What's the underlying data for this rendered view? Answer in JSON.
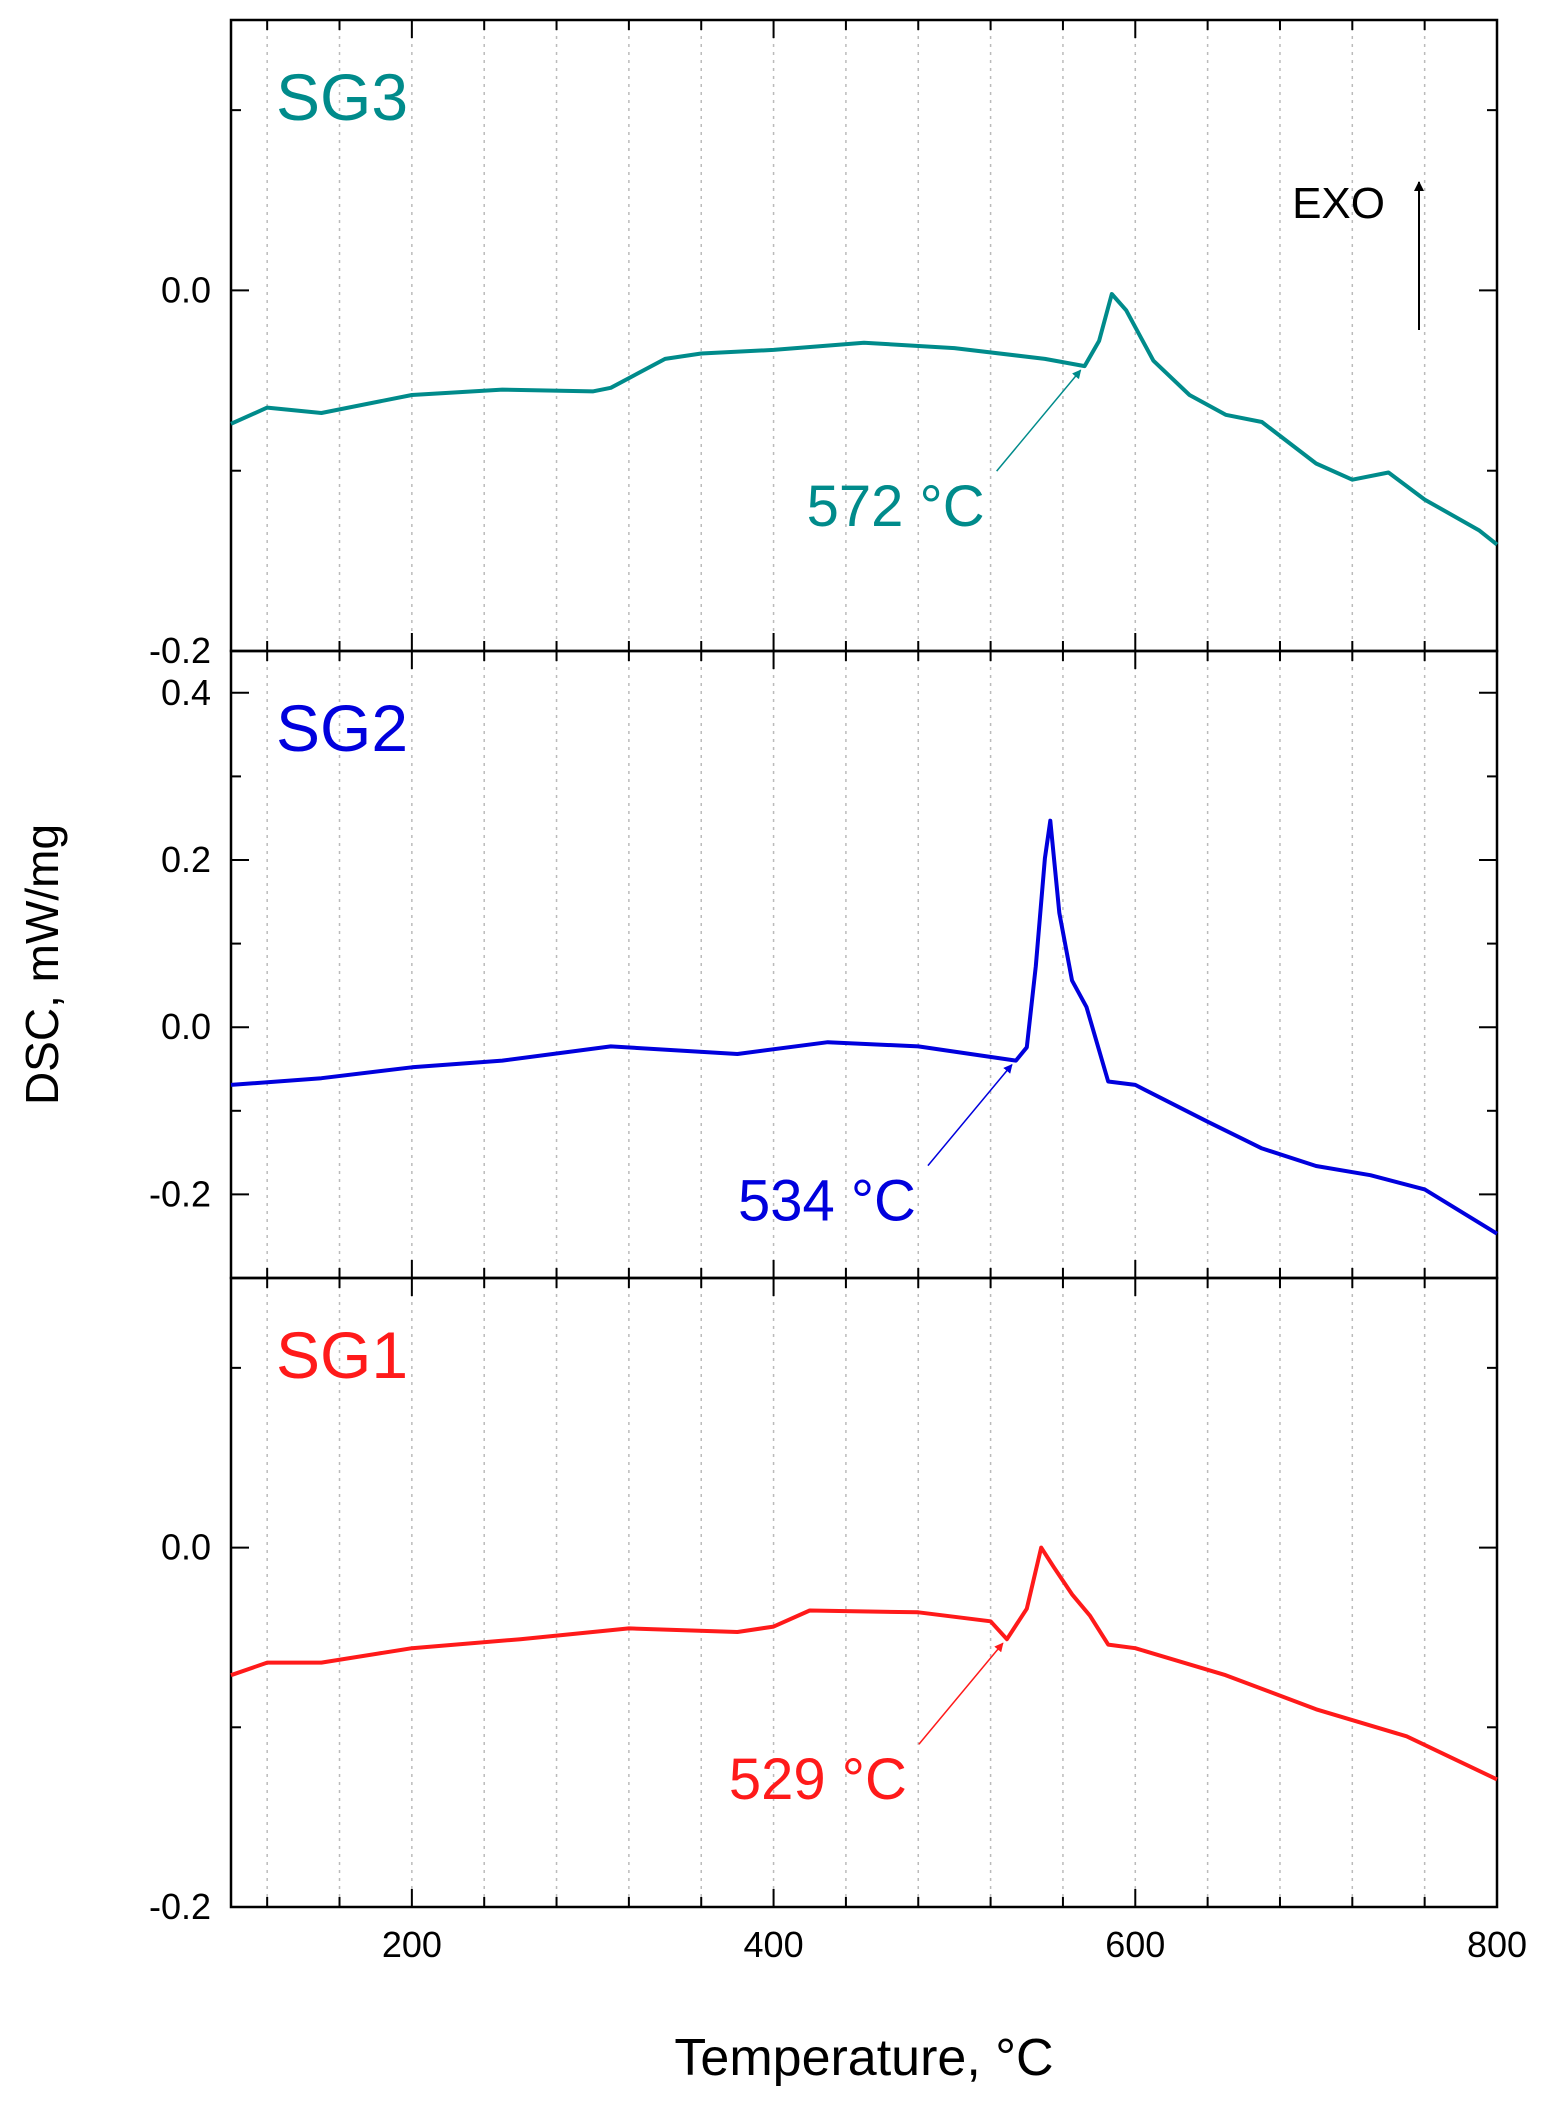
{
  "chart_data": [
    {
      "type": "line",
      "ylim": [
        -0.2,
        0.15
      ],
      "yticks": [
        {
          "value": 0,
          "label": "0.0"
        },
        {
          "value": -0.2,
          "label": "-0.2"
        }
      ],
      "yminorticks": [
        0.1,
        -0.1
      ],
      "series": [
        {
          "name": "SG3",
          "color": "#008b8b",
          "x": [
            100,
            120,
            150,
            200,
            250,
            300,
            310,
            340,
            360,
            400,
            450,
            500,
            550,
            572,
            580,
            587,
            595,
            610,
            630,
            650,
            670,
            700,
            720,
            740,
            760,
            790,
            800
          ],
          "values": [
            -0.074,
            -0.065,
            -0.068,
            -0.058,
            -0.055,
            -0.056,
            -0.054,
            -0.038,
            -0.035,
            -0.033,
            -0.029,
            -0.032,
            -0.038,
            -0.042,
            -0.028,
            -0.002,
            -0.011,
            -0.039,
            -0.058,
            -0.069,
            -0.073,
            -0.096,
            -0.105,
            -0.101,
            -0.116,
            -0.133,
            -0.141
          ]
        }
      ],
      "annotations": [
        {
          "text": "572 °C",
          "x": 572,
          "y": -0.042
        },
        {
          "text": "EXO"
        }
      ]
    },
    {
      "type": "line",
      "ylim": [
        -0.3,
        0.45
      ],
      "ylabel": "DSC, mW/mg",
      "yticks": [
        {
          "value": 0.4,
          "label": "0.4"
        },
        {
          "value": 0.2,
          "label": "0.2"
        },
        {
          "value": 0,
          "label": "0.0"
        },
        {
          "value": -0.2,
          "label": "-0.2"
        }
      ],
      "yminorticks": [
        0.3,
        0.1,
        -0.1
      ],
      "series": [
        {
          "name": "SG2",
          "color": "#0000dd",
          "x": [
            100,
            150,
            200,
            250,
            310,
            380,
            430,
            480,
            534,
            540,
            545,
            550,
            553,
            558,
            565,
            573,
            585,
            600,
            640,
            670,
            700,
            730,
            760,
            800
          ],
          "values": [
            -0.069,
            -0.061,
            -0.048,
            -0.04,
            -0.023,
            -0.032,
            -0.018,
            -0.023,
            -0.04,
            -0.024,
            0.073,
            0.202,
            0.247,
            0.137,
            0.056,
            0.024,
            -0.065,
            -0.069,
            -0.113,
            -0.145,
            -0.166,
            -0.177,
            -0.194,
            -0.247
          ]
        }
      ],
      "annotations": [
        {
          "text": "534 °C",
          "x": 534,
          "y": -0.04
        }
      ]
    },
    {
      "type": "line",
      "ylim": [
        -0.2,
        0.15
      ],
      "xlim": [
        100,
        800
      ],
      "xlabel": "Temperature, °C",
      "xticks": [
        200,
        400,
        600,
        800
      ],
      "xminorticks": [
        120,
        160,
        240,
        280,
        320,
        360,
        440,
        480,
        520,
        560,
        640,
        680,
        720,
        760
      ],
      "yticks": [
        {
          "value": 0,
          "label": "0.0"
        },
        {
          "value": -0.2,
          "label": "-0.2"
        }
      ],
      "yminorticks": [
        0.1,
        -0.1
      ],
      "series": [
        {
          "name": "SG1",
          "color": "#ff1a1a",
          "x": [
            100,
            120,
            150,
            200,
            260,
            320,
            380,
            400,
            420,
            480,
            520,
            529,
            540,
            548,
            555,
            565,
            575,
            585,
            600,
            650,
            700,
            750,
            800
          ],
          "values": [
            -0.071,
            -0.064,
            -0.064,
            -0.056,
            -0.051,
            -0.045,
            -0.047,
            -0.044,
            -0.035,
            -0.036,
            -0.041,
            -0.051,
            -0.034,
            0,
            -0.011,
            -0.026,
            -0.038,
            -0.054,
            -0.056,
            -0.071,
            -0.09,
            -0.105,
            -0.129
          ]
        }
      ],
      "annotations": [
        {
          "text": "529 °C",
          "x": 529,
          "y": -0.051
        }
      ]
    }
  ]
}
